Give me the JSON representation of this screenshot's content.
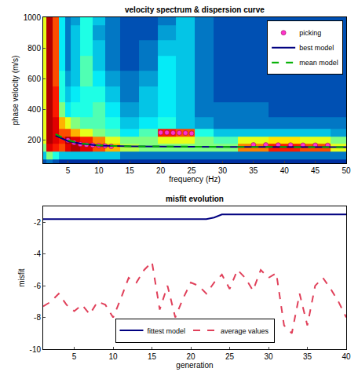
{
  "chart_data": [
    {
      "type": "heatmap",
      "title": "velocity spectrum & dispersion curve",
      "x_label": "frequency (Hz)",
      "y_label": "phase velocity (m/s)",
      "color": "Jet",
      "x": [
        1,
        2,
        3,
        4,
        5,
        6,
        8,
        10,
        12,
        15,
        18,
        21,
        24,
        27,
        30,
        35,
        40,
        45,
        50
      ],
      "y": [
        50,
        100,
        150,
        200,
        250,
        300,
        400,
        500,
        600,
        700,
        800,
        900,
        1000
      ],
      "z": [
        [
          0.15,
          0.2,
          0.15,
          0.1,
          0.1,
          0.1,
          0.1,
          0.1,
          0.1,
          0.1,
          0.1,
          0.1,
          0.1,
          0.1,
          0.1,
          0.1,
          0.1,
          0.1,
          0.1
        ],
        [
          0.3,
          0.5,
          0.4,
          0.3,
          0.3,
          0.3,
          0.3,
          0.3,
          0.3,
          0.2,
          0.2,
          0.2,
          0.2,
          0.2,
          0.2,
          0.2,
          0.2,
          0.2,
          0.2
        ],
        [
          0.5,
          0.9,
          0.85,
          0.8,
          0.9,
          0.95,
          0.9,
          0.8,
          0.7,
          0.55,
          0.5,
          0.5,
          0.5,
          0.5,
          0.5,
          0.75,
          0.85,
          0.8,
          0.6
        ],
        [
          0.6,
          0.95,
          0.9,
          0.85,
          0.95,
          0.9,
          0.85,
          0.75,
          0.6,
          0.5,
          0.5,
          0.6,
          0.6,
          0.5,
          0.45,
          0.6,
          0.65,
          0.6,
          0.5
        ],
        [
          0.6,
          0.95,
          0.9,
          0.8,
          0.8,
          0.7,
          0.6,
          0.5,
          0.45,
          0.35,
          0.45,
          0.85,
          0.8,
          0.4,
          0.3,
          0.3,
          0.3,
          0.3,
          0.25
        ],
        [
          0.6,
          0.95,
          0.9,
          0.7,
          0.6,
          0.5,
          0.45,
          0.45,
          0.4,
          0.3,
          0.35,
          0.4,
          0.3,
          0.25,
          0.2,
          0.2,
          0.2,
          0.2,
          0.2
        ],
        [
          0.6,
          0.95,
          0.85,
          0.5,
          0.35,
          0.4,
          0.4,
          0.45,
          0.35,
          0.25,
          0.3,
          0.35,
          0.3,
          0.2,
          0.2,
          0.2,
          0.15,
          0.15,
          0.15
        ],
        [
          0.6,
          0.95,
          0.85,
          0.4,
          0.3,
          0.35,
          0.4,
          0.4,
          0.3,
          0.2,
          0.3,
          0.35,
          0.3,
          0.2,
          0.15,
          0.15,
          0.15,
          0.15,
          0.15
        ],
        [
          0.6,
          0.95,
          0.8,
          0.4,
          0.25,
          0.3,
          0.45,
          0.35,
          0.25,
          0.2,
          0.25,
          0.35,
          0.3,
          0.2,
          0.15,
          0.15,
          0.15,
          0.15,
          0.15
        ],
        [
          0.6,
          0.95,
          0.8,
          0.35,
          0.2,
          0.3,
          0.45,
          0.3,
          0.2,
          0.15,
          0.2,
          0.35,
          0.3,
          0.2,
          0.15,
          0.15,
          0.15,
          0.15,
          0.15
        ],
        [
          0.6,
          0.95,
          0.8,
          0.35,
          0.2,
          0.3,
          0.4,
          0.3,
          0.2,
          0.15,
          0.2,
          0.3,
          0.3,
          0.2,
          0.15,
          0.15,
          0.15,
          0.15,
          0.15
        ],
        [
          0.6,
          0.95,
          0.8,
          0.35,
          0.2,
          0.3,
          0.4,
          0.25,
          0.2,
          0.15,
          0.15,
          0.25,
          0.3,
          0.2,
          0.15,
          0.15,
          0.15,
          0.15,
          0.15
        ],
        [
          0.6,
          0.95,
          0.8,
          0.35,
          0.2,
          0.25,
          0.4,
          0.3,
          0.2,
          0.15,
          0.15,
          0.2,
          0.3,
          0.2,
          0.15,
          0.15,
          0.15,
          0.15,
          0.15
        ]
      ],
      "zlim": [
        0,
        1
      ],
      "xlim": [
        1,
        50
      ],
      "ylim": [
        50,
        1000
      ],
      "xticks": [
        5,
        10,
        15,
        20,
        25,
        30,
        35,
        40,
        45,
        50
      ],
      "yticks": [
        200,
        400,
        600,
        800,
        1000
      ],
      "grid": false,
      "legend": "upper right",
      "series": [
        {
          "name": "picking",
          "type": "scatter",
          "marker": "circle",
          "color": "#ff33cc",
          "x": [
            5,
            6,
            7,
            8,
            9,
            10,
            11,
            12,
            20,
            21,
            22,
            23,
            24,
            25,
            35,
            37,
            39,
            41,
            43,
            45,
            47
          ],
          "values": [
            200,
            185,
            175,
            170,
            168,
            165,
            163,
            160,
            250,
            250,
            248,
            248,
            247,
            245,
            170,
            170,
            169,
            169,
            168,
            168,
            167
          ]
        },
        {
          "name": "best model",
          "type": "line",
          "line_style": "solid",
          "color": "#000080",
          "x": [
            3,
            5,
            7,
            10,
            15,
            20,
            25,
            30,
            35,
            40,
            45,
            50
          ],
          "values": [
            230,
            195,
            178,
            165,
            160,
            158,
            157,
            156,
            156,
            155,
            155,
            155
          ]
        },
        {
          "name": "mean model",
          "type": "line",
          "line_style": "dashed",
          "color": "#00b000",
          "x": [
            3,
            5,
            7,
            10,
            15,
            20,
            25,
            30,
            35,
            40,
            45,
            50
          ],
          "values": [
            240,
            200,
            180,
            167,
            161,
            159,
            158,
            157,
            156,
            156,
            155,
            155
          ]
        }
      ]
    },
    {
      "type": "line",
      "title": "misfit evolution",
      "x_label": "generation",
      "y_label": "misfit",
      "x": [
        1,
        2,
        3,
        4,
        5,
        6,
        7,
        8,
        9,
        10,
        11,
        12,
        13,
        14,
        15,
        16,
        17,
        18,
        19,
        20,
        21,
        22,
        23,
        24,
        25,
        26,
        27,
        28,
        29,
        30,
        31,
        32,
        33,
        34,
        35,
        36,
        37,
        38,
        39,
        40
      ],
      "xlim": [
        1,
        40
      ],
      "ylim": [
        -10,
        -1
      ],
      "xticks": [
        5,
        10,
        15,
        20,
        25,
        30,
        35,
        40
      ],
      "yticks": [
        -10,
        -8,
        -6,
        -4,
        -2
      ],
      "grid": false,
      "legend": "lower center",
      "series": [
        {
          "name": "fittest model",
          "line_style": "solid",
          "color": "#000080",
          "values": [
            -1.8,
            -1.8,
            -1.8,
            -1.8,
            -1.8,
            -1.8,
            -1.8,
            -1.8,
            -1.8,
            -1.8,
            -1.8,
            -1.8,
            -1.8,
            -1.8,
            -1.8,
            -1.8,
            -1.8,
            -1.8,
            -1.8,
            -1.8,
            -1.8,
            -1.8,
            -1.7,
            -1.5,
            -1.5,
            -1.5,
            -1.5,
            -1.5,
            -1.5,
            -1.5,
            -1.5,
            -1.5,
            -1.5,
            -1.5,
            -1.5,
            -1.5,
            -1.5,
            -1.5,
            -1.5,
            -1.5
          ]
        },
        {
          "name": "average values",
          "line_style": "dashed",
          "color": "#e0405a",
          "values": [
            -7.3,
            -7.0,
            -6.5,
            -7.2,
            -7.6,
            -7.2,
            -7.8,
            -7.0,
            -7.2,
            -8.0,
            -6.8,
            -5.5,
            -5.8,
            -5.0,
            -4.5,
            -7.5,
            -6.0,
            -8.0,
            -6.8,
            -5.8,
            -6.0,
            -6.5,
            -5.8,
            -5.3,
            -6.2,
            -5.0,
            -5.5,
            -6.3,
            -5.0,
            -5.5,
            -5.2,
            -8.5,
            -9.0,
            -6.5,
            -8.5,
            -6.0,
            -5.5,
            -6.2,
            -7.0,
            -8.0
          ]
        }
      ]
    }
  ]
}
